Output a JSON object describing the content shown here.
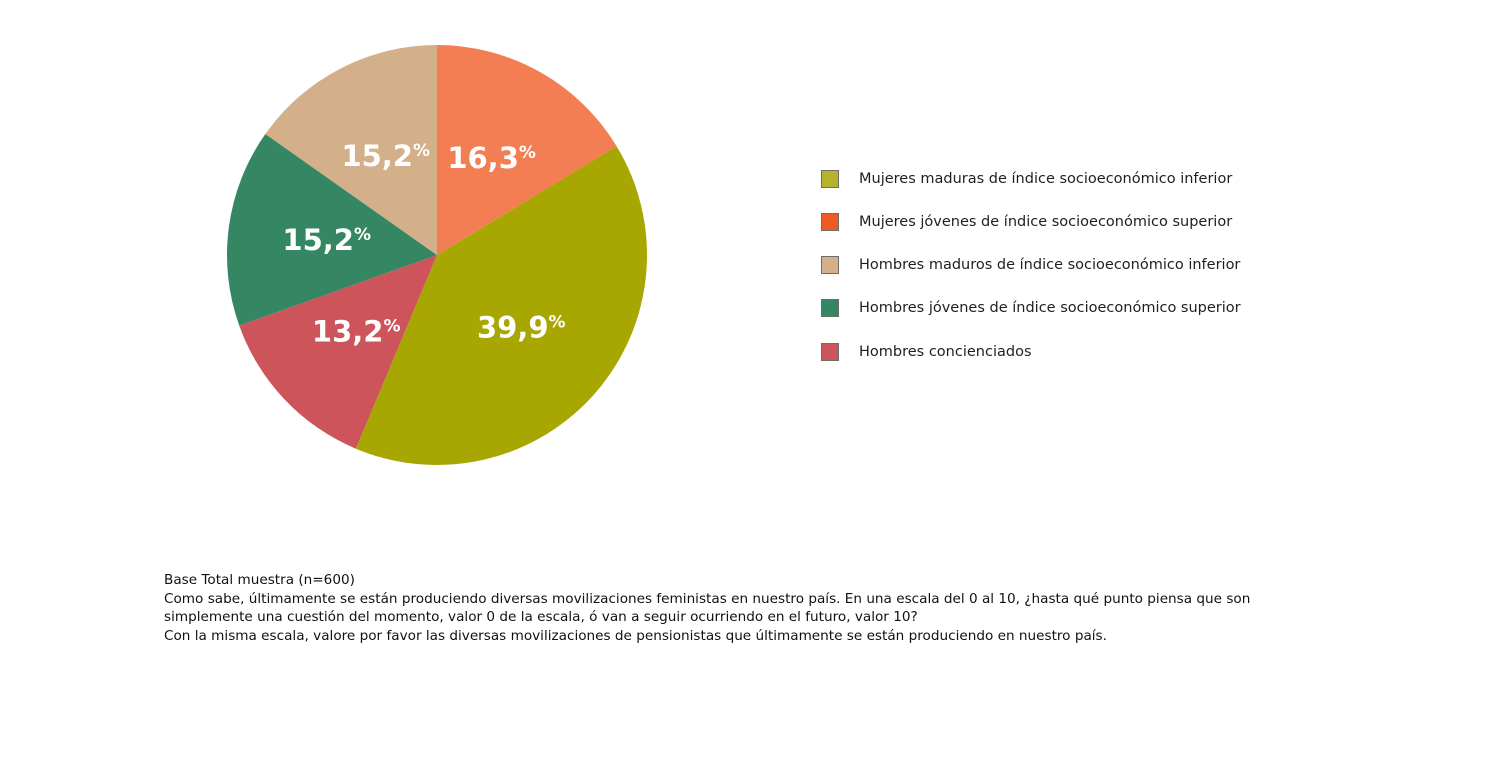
{
  "chart_data": {
    "type": "pie",
    "title": "",
    "slices": [
      {
        "label": "Mujeres jóvenes de índice socioeconómico superior",
        "value": 16.3,
        "display": "16,3",
        "color": "#f47e53"
      },
      {
        "label": "Mujeres maduras de índice socioeconómico inferior",
        "value": 39.9,
        "display": "39,9",
        "color": "#a8a600"
      },
      {
        "label": "Hombres concienciados",
        "value": 13.2,
        "display": "13,2",
        "color": "#cd545a"
      },
      {
        "label": "Hombres jóvenes de índice socioeconómico superior",
        "value": 15.2,
        "display": "15,2",
        "color": "#358763"
      },
      {
        "label": "Hombres maduros de índice socioeconómico inferior",
        "value": 15.2,
        "display": "15,2",
        "color": "#d3b08a"
      }
    ],
    "value_suffix": "%",
    "legend": {
      "placement": "right",
      "items": [
        {
          "label": "Mujeres maduras de índice socioeconómico inferior",
          "color": "#b3b42a"
        },
        {
          "label": "Mujeres jóvenes de índice socioeconómico superior",
          "color": "#f05a22"
        },
        {
          "label": "Hombres maduros de índice socioeconómico inferior",
          "color": "#d3b08a"
        },
        {
          "label": "Hombres jóvenes de índice socioeconómico superior",
          "color": "#358763"
        },
        {
          "label": "Hombres concienciados",
          "color": "#cd545a"
        }
      ]
    }
  },
  "footnote": {
    "line1": "Base Total muestra (n=600)",
    "line2": "Como sabe, últimamente se están produciendo diversas movilizaciones feministas en nuestro país. En una escala del 0 al 10, ¿hasta qué punto piensa que son simplemente una cuestión del momento, valor 0 de la escala, ó van a seguir ocurriendo en el futuro, valor 10?",
    "line3": "Con la misma escala, valore por favor las diversas movilizaciones de pensionistas que últimamente se están produciendo en nuestro país."
  }
}
